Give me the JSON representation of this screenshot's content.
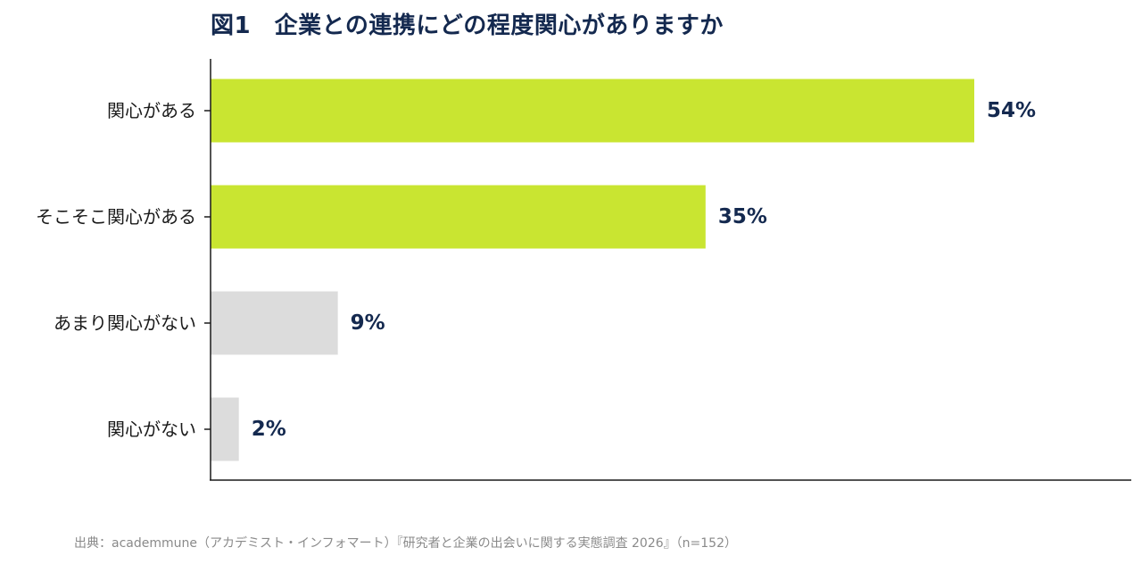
{
  "chart_data": {
    "type": "bar",
    "orientation": "horizontal",
    "title": "図1　企業との連携にどの程度関心がありますか",
    "categories": [
      "関心がある",
      "そこそこ関心がある",
      "あまり関心がない",
      "関心がない"
    ],
    "values": [
      54,
      35,
      9,
      2
    ],
    "value_labels": [
      "54%",
      "35%",
      "9%",
      "2%"
    ],
    "unit": "%",
    "bar_colors": [
      "#c9e531",
      "#c9e531",
      "#dcdcdc",
      "#dcdcdc"
    ],
    "xlim": [
      0,
      65
    ],
    "grid": false,
    "legend": "none"
  },
  "source": "出典：academmune（アカデミスト・インフォマート）『研究者と企業の出会いに関する実態調査 2026』（n=152）",
  "colors": {
    "title": "#14294f",
    "value_label": "#14294f",
    "highlight": "#c9e531",
    "muted": "#dcdcdc",
    "axis": "#1a1a1a"
  }
}
